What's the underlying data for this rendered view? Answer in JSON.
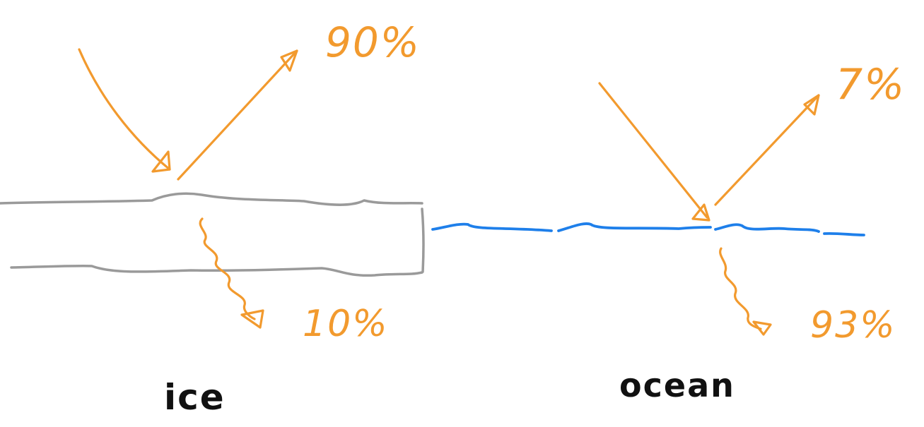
{
  "colors": {
    "arrow": "#F29A2E",
    "ice_outline": "#9A9A9A",
    "water": "#1E7FEA",
    "label_text": "#111111"
  },
  "ice": {
    "label": "ice",
    "reflected_label": "90%",
    "absorbed_label": "10%"
  },
  "ocean": {
    "label": "ocean",
    "reflected_label": "7%",
    "absorbed_label": "93%"
  }
}
